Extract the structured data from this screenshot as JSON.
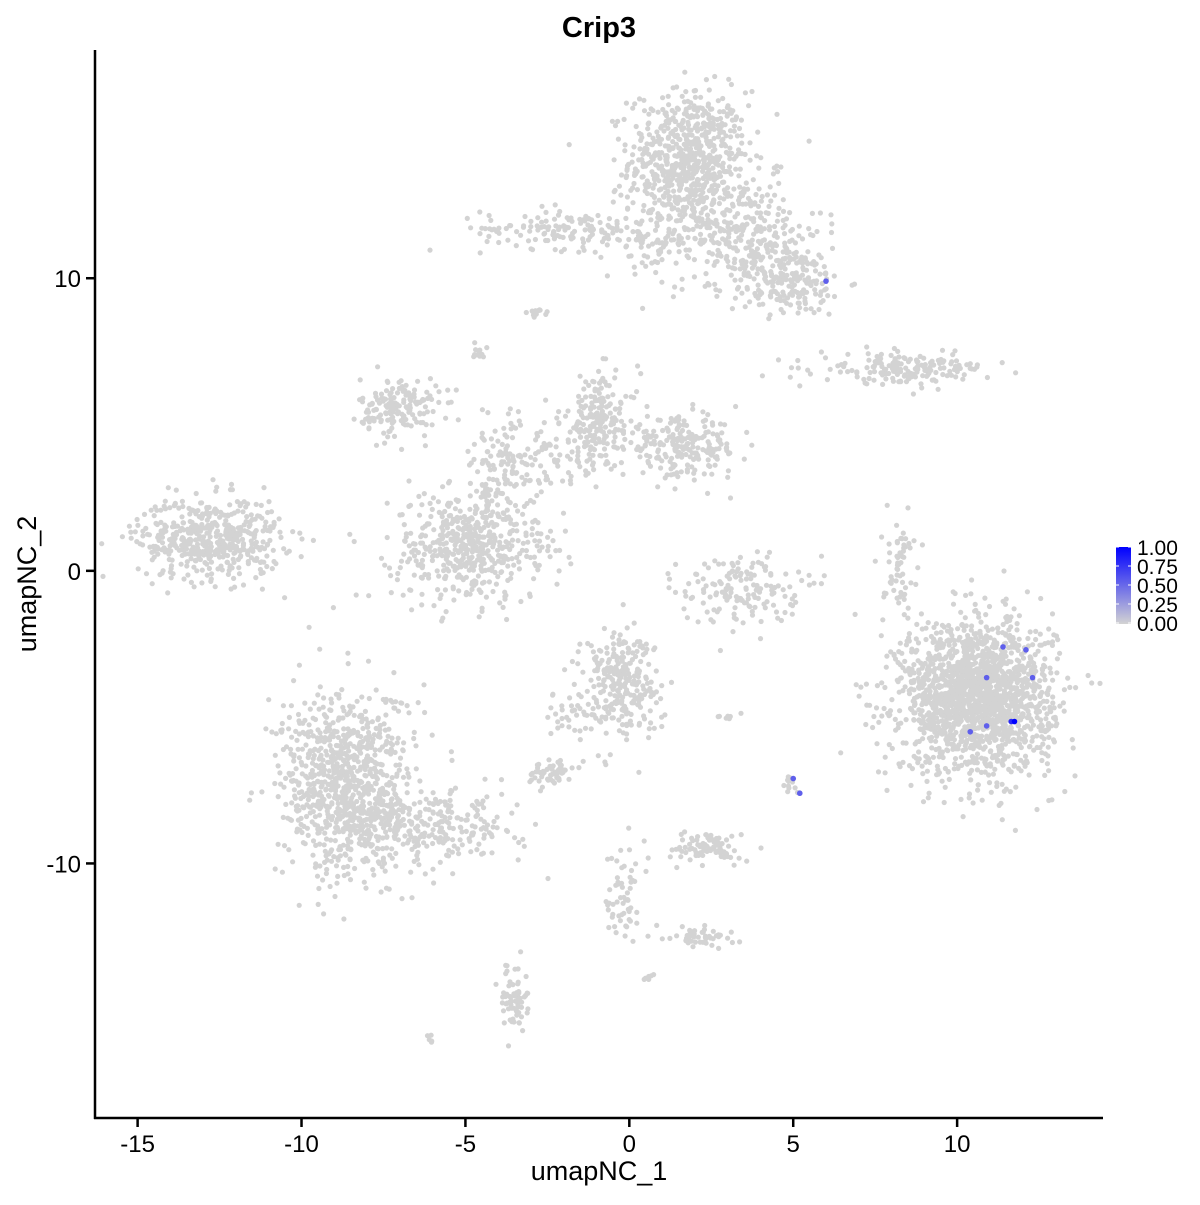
{
  "chart_data": {
    "type": "scatter",
    "title": "Crip3",
    "xlabel": "umapNC_1",
    "ylabel": "umapNC_2",
    "xlim": [
      -16.3,
      14.45
    ],
    "ylim": [
      -18.7,
      17.8
    ],
    "xticks": [
      -15,
      -10,
      -5,
      0,
      5,
      10
    ],
    "yticks": [
      -10,
      0,
      10
    ],
    "xtick_labels": [
      "-15",
      "-10",
      "-5",
      "0",
      "5",
      "10"
    ],
    "ytick_labels": [
      "-10",
      "0",
      "10"
    ],
    "grid": false,
    "colors": {
      "low": "#d3d3d3",
      "high": "#0000ff"
    },
    "legend": {
      "placement": "right",
      "range": [
        0,
        1
      ],
      "labels": [
        "1.00",
        "0.75",
        "0.50",
        "0.25",
        "0.00"
      ]
    },
    "background_clusters": [
      {
        "cx": 1.8,
        "cy": 14.0,
        "sx": 0.9,
        "sy": 1.2,
        "n": 700
      },
      {
        "cx": 3.5,
        "cy": 11.6,
        "sx": 1.2,
        "sy": 0.9,
        "n": 250
      },
      {
        "cx": 4.8,
        "cy": 9.9,
        "sx": 0.9,
        "sy": 0.6,
        "n": 200
      },
      {
        "cx": -1.9,
        "cy": 11.7,
        "sx": 1.3,
        "sy": 0.35,
        "n": 140
      },
      {
        "cx": 0.9,
        "cy": 11.3,
        "sx": 0.9,
        "sy": 0.5,
        "n": 80
      },
      {
        "cx": -12.8,
        "cy": 1.1,
        "sx": 1.1,
        "sy": 0.7,
        "n": 500
      },
      {
        "cx": -7.0,
        "cy": 5.6,
        "sx": 0.6,
        "sy": 0.5,
        "n": 160
      },
      {
        "cx": -5.0,
        "cy": 0.8,
        "sx": 1.1,
        "sy": 0.95,
        "n": 450
      },
      {
        "cx": -4.0,
        "cy": 3.4,
        "sx": 0.6,
        "sy": 1.0,
        "n": 120
      },
      {
        "cx": -0.9,
        "cy": 5.2,
        "sx": 0.6,
        "sy": 0.8,
        "n": 180
      },
      {
        "cx": 1.6,
        "cy": 4.2,
        "sx": 0.9,
        "sy": 0.5,
        "n": 220
      },
      {
        "cx": -2.3,
        "cy": 3.8,
        "sx": 0.8,
        "sy": 0.7,
        "n": 80
      },
      {
        "cx": 8.4,
        "cy": 6.9,
        "sx": 1.3,
        "sy": 0.25,
        "n": 180
      },
      {
        "cx": 10.6,
        "cy": -4.3,
        "sx": 1.15,
        "sy": 1.3,
        "n": 1800
      },
      {
        "cx": 3.4,
        "cy": -0.6,
        "sx": 0.9,
        "sy": 0.6,
        "n": 160
      },
      {
        "cx": 8.2,
        "cy": 0.3,
        "sx": 0.25,
        "sy": 0.8,
        "n": 60
      },
      {
        "cx": -0.3,
        "cy": -3.8,
        "sx": 0.6,
        "sy": 0.9,
        "n": 280
      },
      {
        "cx": -8.6,
        "cy": -7.3,
        "sx": 1.0,
        "sy": 1.6,
        "n": 900
      },
      {
        "cx": -6.0,
        "cy": -8.8,
        "sx": 1.3,
        "sy": 0.6,
        "n": 250
      },
      {
        "cx": -2.4,
        "cy": -6.9,
        "sx": 0.35,
        "sy": 0.2,
        "n": 60
      },
      {
        "cx": -1.8,
        "cy": -4.9,
        "sx": 0.35,
        "sy": 0.5,
        "n": 30
      },
      {
        "cx": 2.4,
        "cy": -9.5,
        "sx": 0.5,
        "sy": 0.25,
        "n": 90
      },
      {
        "cx": -0.2,
        "cy": -10.8,
        "sx": 0.25,
        "sy": 0.9,
        "n": 60
      },
      {
        "cx": 2.2,
        "cy": -12.5,
        "sx": 0.5,
        "sy": 0.2,
        "n": 50
      },
      {
        "cx": -3.5,
        "cy": -14.6,
        "sx": 0.2,
        "sy": 0.5,
        "n": 70
      },
      {
        "cx": -2.8,
        "cy": 8.8,
        "sx": 0.15,
        "sy": 0.1,
        "n": 12
      },
      {
        "cx": -4.6,
        "cy": 7.5,
        "sx": 0.1,
        "sy": 0.15,
        "n": 12
      },
      {
        "cx": 4.9,
        "cy": -7.2,
        "sx": 0.15,
        "sy": 0.2,
        "n": 12
      },
      {
        "cx": 0.6,
        "cy": -13.9,
        "sx": 0.1,
        "sy": 0.1,
        "n": 6
      },
      {
        "cx": -6.0,
        "cy": -16.0,
        "sx": 0.1,
        "sy": 0.05,
        "n": 5
      },
      {
        "cx": 3.0,
        "cy": -5.0,
        "sx": 0.3,
        "sy": 0.05,
        "n": 8
      },
      {
        "cx": -3.5,
        "cy": 1.0,
        "sx": 0.8,
        "sy": 0.6,
        "n": 40
      }
    ],
    "expressing_points": [
      {
        "x": 6.0,
        "y": 9.9,
        "value": 0.55
      },
      {
        "x": 11.4,
        "y": -2.6,
        "value": 0.55
      },
      {
        "x": 12.1,
        "y": -2.7,
        "value": 0.55
      },
      {
        "x": 10.9,
        "y": -3.65,
        "value": 0.55
      },
      {
        "x": 12.3,
        "y": -3.65,
        "value": 0.55
      },
      {
        "x": 10.4,
        "y": -5.5,
        "value": 0.55
      },
      {
        "x": 10.9,
        "y": -5.3,
        "value": 0.55
      },
      {
        "x": 11.65,
        "y": -5.15,
        "value": 0.8
      },
      {
        "x": 11.75,
        "y": -5.15,
        "value": 1.0
      },
      {
        "x": 5.0,
        "y": -7.1,
        "value": 0.55
      },
      {
        "x": 5.2,
        "y": -7.6,
        "value": 0.55
      }
    ]
  }
}
